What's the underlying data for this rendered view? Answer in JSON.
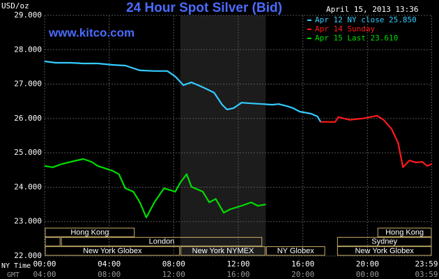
{
  "chart_data": {
    "type": "line",
    "title": "24 Hour Spot Silver (Bid)",
    "watermark": "www.kitco.com",
    "y_label": "USD/oz",
    "timestamp": "April 15, 2013 13:36",
    "x_row_labels": [
      "NY Time",
      "GMT"
    ],
    "xlim": [
      0,
      24
    ],
    "ylim": [
      22,
      29
    ],
    "grid": true,
    "legend": "top-right",
    "xticks": [
      {
        "value": 0,
        "label": "00:00",
        "gmt": "04:00"
      },
      {
        "value": 4,
        "label": "04:00",
        "gmt": "08:00"
      },
      {
        "value": 8,
        "label": "08:00",
        "gmt": "12:00"
      },
      {
        "value": 12,
        "label": "12:00",
        "gmt": "16:00"
      },
      {
        "value": 16,
        "label": "16:00",
        "gmt": "20:00"
      },
      {
        "value": 20,
        "label": "20:00",
        "gmt": "00:00"
      },
      {
        "value": 23.98,
        "label": "23:59",
        "gmt": "03:59"
      }
    ],
    "yticks": [
      {
        "value": 22,
        "label": "22.000"
      },
      {
        "value": 23,
        "label": "23.000"
      },
      {
        "value": 24,
        "label": "24.000"
      },
      {
        "value": 25,
        "label": "25.000"
      },
      {
        "value": 26,
        "label": "26.000"
      },
      {
        "value": 27,
        "label": "27.000"
      },
      {
        "value": 28,
        "label": "28.000"
      },
      {
        "value": 29,
        "label": "29.000"
      }
    ],
    "shaded_range": [
      8.4,
      13.7
    ],
    "sessions": [
      [
        {
          "label": "Hong Kong",
          "start": 0,
          "end": 5.6
        },
        {
          "label": "Hong Kong",
          "start": 20.6,
          "end": 24
        }
      ],
      [
        {
          "label": null,
          "start": 0,
          "end": 1.0
        },
        {
          "label": "London",
          "start": 1.0,
          "end": 13.5
        },
        {
          "label": "Sydney",
          "start": 18.1,
          "end": 24
        }
      ],
      [
        {
          "label": "New York Globex",
          "start": 0,
          "end": 8.4
        },
        {
          "label": "New York NYMEX",
          "start": 8.4,
          "end": 13.7
        },
        {
          "label": "NY Globex",
          "start": 13.7,
          "end": 17.4
        },
        {
          "label": "New York Globex",
          "start": 18.1,
          "end": 24
        }
      ]
    ],
    "series": [
      {
        "name": "Apr 12 NY close 25.850",
        "color": "#33ccff",
        "x": [
          0,
          0.7,
          1.6,
          2.4,
          3.3,
          4.2,
          5.0,
          5.9,
          6.8,
          7.6,
          8.1,
          8.6,
          9.1,
          9.8,
          10.5,
          11.0,
          11.3,
          11.7,
          12.2,
          12.8,
          13.5,
          14.1,
          14.5,
          15.0,
          15.4,
          15.8,
          16.5,
          16.9,
          17.1
        ],
        "values": [
          27.66,
          27.62,
          27.62,
          27.6,
          27.6,
          27.56,
          27.54,
          27.4,
          27.38,
          27.38,
          27.22,
          26.97,
          27.05,
          26.91,
          26.75,
          26.4,
          26.26,
          26.3,
          26.46,
          26.44,
          26.42,
          26.4,
          26.42,
          26.36,
          26.3,
          26.2,
          26.14,
          26.06,
          25.9
        ]
      },
      {
        "name": "Apr 14 Sunday",
        "color": "#ff1a1a",
        "x": [
          17.1,
          18.0,
          18.2,
          18.9,
          19.7,
          20.6,
          21.0,
          21.5,
          21.9,
          22.2,
          22.6,
          23.0,
          23.4,
          23.7,
          24.0
        ],
        "values": [
          25.9,
          25.9,
          26.04,
          25.96,
          26.0,
          26.08,
          25.96,
          25.69,
          25.29,
          24.58,
          24.78,
          24.72,
          24.74,
          24.62,
          24.68
        ]
      },
      {
        "name": "Apr 15 Last 23.610",
        "color": "#00dd00",
        "x": [
          0,
          0.5,
          1.1,
          2.0,
          2.4,
          2.9,
          3.3,
          4.2,
          4.6,
          5.0,
          5.5,
          5.9,
          6.3,
          6.8,
          7.4,
          8.1,
          8.4,
          8.8,
          9.1,
          9.8,
          10.2,
          10.6,
          11.1,
          11.5,
          12.2,
          12.8,
          13.2,
          13.7
        ],
        "values": [
          24.62,
          24.58,
          24.68,
          24.78,
          24.82,
          24.74,
          24.62,
          24.48,
          24.38,
          23.97,
          23.87,
          23.56,
          23.12,
          23.56,
          23.97,
          23.87,
          24.13,
          24.38,
          24.01,
          23.87,
          23.56,
          23.66,
          23.26,
          23.36,
          23.46,
          23.56,
          23.46,
          23.5
        ]
      }
    ]
  }
}
